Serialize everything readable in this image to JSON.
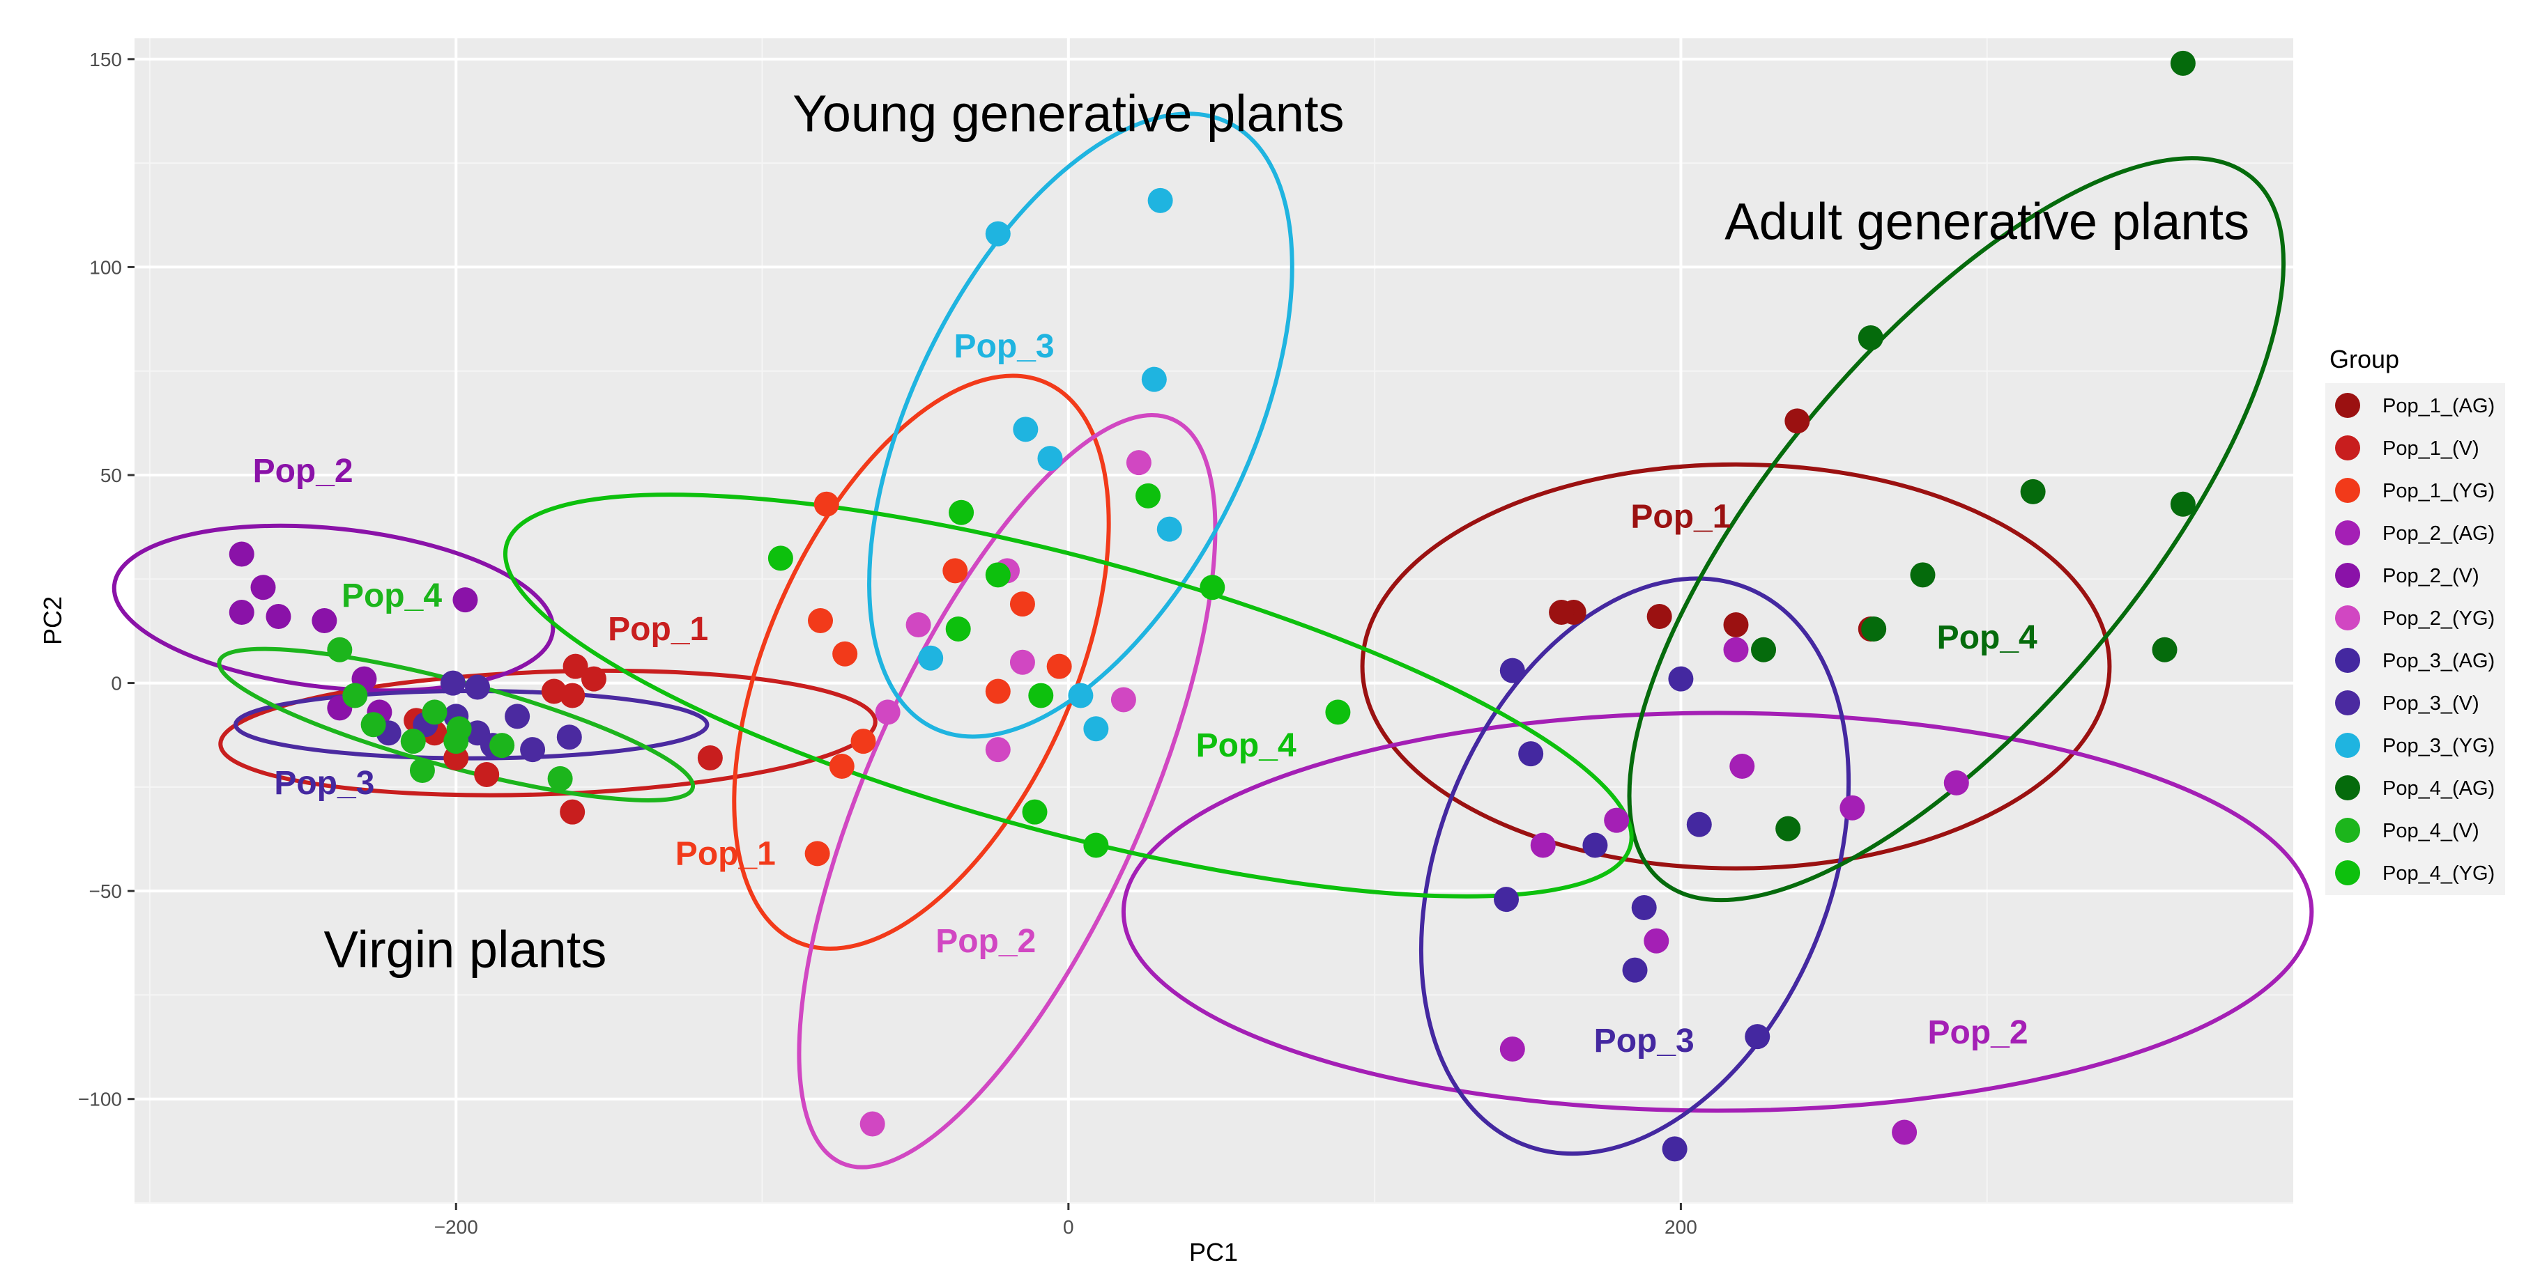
{
  "chart_data": {
    "type": "scatter",
    "xlabel": "PC1",
    "ylabel": "PC2",
    "xlim": [
      -305,
      400
    ],
    "ylim": [
      -125,
      155
    ],
    "x_ticks": [
      -200,
      0,
      200
    ],
    "y_ticks": [
      -100,
      -50,
      0,
      50,
      100,
      150
    ],
    "grid": true,
    "legend": {
      "title": "Group",
      "placement": "right",
      "entries": [
        {
          "label": "Pop_1_(AG)",
          "color": "#9B1111"
        },
        {
          "label": "Pop_1_(V)",
          "color": "#C81E1E"
        },
        {
          "label": "Pop_1_(YG)",
          "color": "#F23A1A"
        },
        {
          "label": "Pop_2_(AG)",
          "color": "#A41FB5"
        },
        {
          "label": "Pop_2_(V)",
          "color": "#8A12A8"
        },
        {
          "label": "Pop_2_(YG)",
          "color": "#D147C2"
        },
        {
          "label": "Pop_3_(AG)",
          "color": "#4428A0"
        },
        {
          "label": "Pop_3_(V)",
          "color": "#4B2AA0"
        },
        {
          "label": "Pop_3_(YG)",
          "color": "#1FB4E0"
        },
        {
          "label": "Pop_4_(AG)",
          "color": "#056B0C"
        },
        {
          "label": "Pop_4_(V)",
          "color": "#1CB51C"
        },
        {
          "label": "Pop_4_(YG)",
          "color": "#0DC00D"
        }
      ]
    },
    "series": [
      {
        "name": "Pop_1_(AG)",
        "color": "#9B1111",
        "points": [
          [
            238,
            63
          ],
          [
            218,
            14
          ],
          [
            193,
            16
          ],
          [
            165,
            17
          ],
          [
            161,
            17
          ],
          [
            262,
            13
          ]
        ]
      },
      {
        "name": "Pop_1_(V)",
        "color": "#C81E1E",
        "points": [
          [
            -161,
            4
          ],
          [
            -155,
            1
          ],
          [
            -162,
            -3
          ],
          [
            -168,
            -2
          ],
          [
            -117,
            -18
          ],
          [
            -162,
            -31
          ],
          [
            -190,
            -22
          ],
          [
            -200,
            -18
          ],
          [
            -207,
            -12
          ],
          [
            -213,
            -9
          ]
        ]
      },
      {
        "name": "Pop_1_(YG)",
        "color": "#F23A1A",
        "points": [
          [
            -79,
            43
          ],
          [
            -81,
            15
          ],
          [
            -73,
            7
          ],
          [
            -37,
            27
          ],
          [
            -15,
            19
          ],
          [
            -3,
            4
          ],
          [
            -67,
            -14
          ],
          [
            -74,
            -20
          ],
          [
            -82,
            -41
          ],
          [
            -23,
            -2
          ]
        ]
      },
      {
        "name": "Pop_2_(AG)",
        "color": "#A41FB5",
        "points": [
          [
            220,
            -20
          ],
          [
            256,
            -30
          ],
          [
            290,
            -24
          ],
          [
            179,
            -33
          ],
          [
            192,
            -62
          ],
          [
            155,
            -39
          ],
          [
            145,
            -88
          ],
          [
            273,
            -108
          ],
          [
            218,
            8
          ]
        ]
      },
      {
        "name": "Pop_2_(V)",
        "color": "#8A12A8",
        "points": [
          [
            -270,
            31
          ],
          [
            -263,
            23
          ],
          [
            -270,
            17
          ],
          [
            -258,
            16
          ],
          [
            -243,
            15
          ],
          [
            -197,
            20
          ],
          [
            -230,
            1
          ],
          [
            -225,
            -7
          ],
          [
            -238,
            -6
          ]
        ]
      },
      {
        "name": "Pop_2_(YG)",
        "color": "#D147C2",
        "points": [
          [
            23,
            53
          ],
          [
            -20,
            27
          ],
          [
            -49,
            14
          ],
          [
            -15,
            5
          ],
          [
            -59,
            -7
          ],
          [
            -23,
            -16
          ],
          [
            18,
            -4
          ],
          [
            -64,
            -106
          ]
        ]
      },
      {
        "name": "Pop_3_(AG)",
        "color": "#4428A0",
        "points": [
          [
            145,
            3
          ],
          [
            151,
            -17
          ],
          [
            198,
            -112
          ],
          [
            225,
            -85
          ],
          [
            188,
            -54
          ],
          [
            185,
            -69
          ],
          [
            143,
            -52
          ],
          [
            206,
            -34
          ],
          [
            200,
            1
          ],
          [
            172,
            -39
          ]
        ]
      },
      {
        "name": "Pop_3_(V)",
        "color": "#4B2AA0",
        "points": [
          [
            -201,
            0
          ],
          [
            -193,
            -1
          ],
          [
            -200,
            -8
          ],
          [
            -193,
            -12
          ],
          [
            -188,
            -15
          ],
          [
            -180,
            -8
          ],
          [
            -175,
            -16
          ],
          [
            -163,
            -13
          ],
          [
            -210,
            -10
          ],
          [
            -222,
            -12
          ]
        ]
      },
      {
        "name": "Pop_3_(YG)",
        "color": "#1FB4E0",
        "points": [
          [
            30,
            116
          ],
          [
            -23,
            108
          ],
          [
            28,
            73
          ],
          [
            -14,
            61
          ],
          [
            -6,
            54
          ],
          [
            33,
            37
          ],
          [
            -45,
            6
          ],
          [
            4,
            -3
          ],
          [
            9,
            -11
          ]
        ]
      },
      {
        "name": "Pop_4_(AG)",
        "color": "#056B0C",
        "points": [
          [
            364,
            149
          ],
          [
            262,
            83
          ],
          [
            315,
            46
          ],
          [
            364,
            43
          ],
          [
            358,
            8
          ],
          [
            279,
            26
          ],
          [
            263,
            13
          ],
          [
            227,
            8
          ],
          [
            235,
            -35
          ]
        ]
      },
      {
        "name": "Pop_4_(V)",
        "color": "#1CB51C",
        "points": [
          [
            -238,
            8
          ],
          [
            -233,
            -3
          ],
          [
            -227,
            -10
          ],
          [
            -214,
            -14
          ],
          [
            -199,
            -11
          ],
          [
            -207,
            -7
          ],
          [
            -200,
            -14
          ],
          [
            -185,
            -15
          ],
          [
            -166,
            -23
          ],
          [
            -211,
            -21
          ]
        ]
      },
      {
        "name": "Pop_4_(YG)",
        "color": "#0DC00D",
        "points": [
          [
            -94,
            30
          ],
          [
            -35,
            41
          ],
          [
            -36,
            13
          ],
          [
            -23,
            26
          ],
          [
            26,
            45
          ],
          [
            47,
            23
          ],
          [
            88,
            -7
          ],
          [
            -9,
            -3
          ],
          [
            -11,
            -31
          ],
          [
            9,
            -39
          ]
        ]
      }
    ],
    "ellipses": [
      {
        "group": "Pop_1_(AG)",
        "color": "#9B1111",
        "cx": 218,
        "cy": 4,
        "rx": 122,
        "ry": 66,
        "angle": 0
      },
      {
        "group": "Pop_1_(V)",
        "color": "#C81E1E",
        "cx": -170,
        "cy": -12,
        "rx": 107,
        "ry": 20,
        "angle": 2
      },
      {
        "group": "Pop_1_(YG)",
        "color": "#F23A1A",
        "cx": -48,
        "cy": 5,
        "rx": 100,
        "ry": 50,
        "angle": 66
      },
      {
        "group": "Pop_2_(AG)",
        "color": "#A41FB5",
        "cx": 212,
        "cy": -55,
        "rx": 194,
        "ry": 65,
        "angle": 0
      },
      {
        "group": "Pop_2_(V)",
        "color": "#8A12A8",
        "cx": -240,
        "cy": 18,
        "rx": 72,
        "ry": 26,
        "angle": -6
      },
      {
        "group": "Pop_2_(YG)",
        "color": "#D147C2",
        "cx": -20,
        "cy": -26,
        "rx": 133,
        "ry": 45,
        "angle": 66
      },
      {
        "group": "Pop_3_(AG)",
        "color": "#4428A0",
        "cx": 185,
        "cy": -44,
        "rx": 98,
        "ry": 64,
        "angle": 68
      },
      {
        "group": "Pop_3_(V)",
        "color": "#4B2AA0",
        "cx": -195,
        "cy": -10,
        "rx": 77,
        "ry": 11,
        "angle": 0
      },
      {
        "group": "Pop_3_(YG)",
        "color": "#1FB4E0",
        "cx": 4,
        "cy": 62,
        "rx": 110,
        "ry": 55,
        "angle": 64
      },
      {
        "group": "Pop_4_(AG)",
        "color": "#056B0C",
        "cx": 290,
        "cy": 37,
        "rx": 150,
        "ry": 60,
        "angle": 50
      },
      {
        "group": "Pop_4_(V)",
        "color": "#1CB51C",
        "cx": -200,
        "cy": -10,
        "rx": 80,
        "ry": 14,
        "angle": -15
      },
      {
        "group": "Pop_4_(YG)",
        "color": "#0DC00D",
        "cx": 0,
        "cy": -3,
        "rx": 190,
        "ry": 45,
        "angle": -15
      }
    ],
    "group_labels": [
      {
        "text": "Pop_2",
        "color": "#8A12A8",
        "x": -250,
        "y": 51
      },
      {
        "text": "Pop_4",
        "color": "#1CB51C",
        "x": -221,
        "y": 21
      },
      {
        "text": "Pop_1",
        "color": "#C81E1E",
        "x": -134,
        "y": 13
      },
      {
        "text": "Pop_3",
        "color": "#4428A0",
        "x": -243,
        "y": -24
      },
      {
        "text": "Pop_3",
        "color": "#1FB4E0",
        "x": -21,
        "y": 81
      },
      {
        "text": "Pop_1",
        "color": "#F23A1A",
        "x": -112,
        "y": -41
      },
      {
        "text": "Pop_4",
        "color": "#0DC00D",
        "x": 58,
        "y": -15
      },
      {
        "text": "Pop_2",
        "color": "#D147C2",
        "x": -27,
        "y": -62
      },
      {
        "text": "Pop_1",
        "color": "#9B1111",
        "x": 200,
        "y": 40
      },
      {
        "text": "Pop_4",
        "color": "#056B0C",
        "x": 300,
        "y": 11
      },
      {
        "text": "Pop_3",
        "color": "#4428A0",
        "x": 188,
        "y": -86
      },
      {
        "text": "Pop_2",
        "color": "#A41FB5",
        "x": 297,
        "y": -84
      }
    ],
    "annotations": [
      {
        "text": "Young generative plants",
        "x": 0,
        "y": 137
      },
      {
        "text": "Adult generative plants",
        "x": 300,
        "y": 111
      },
      {
        "text": "Virgin plants",
        "x": -197,
        "y": -64
      }
    ]
  }
}
